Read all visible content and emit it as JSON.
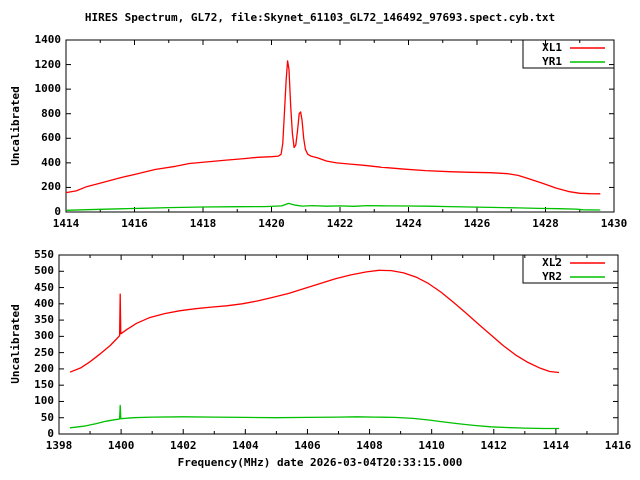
{
  "title": "HIRES Spectrum, GL72, file:Skynet_61103_GL72_146492_97693.spect.cyb.txt",
  "xlabel": "Frequency(MHz) date 2026-03-04T20:33:15.000",
  "colors": {
    "series_red": "#ff0000",
    "series_green": "#00c000",
    "frame": "#000000",
    "background": "#ffffff",
    "text": "#000000"
  },
  "chart_data": [
    {
      "type": "line",
      "panel": "top",
      "ylabel": "Uncalibrated",
      "xlim": [
        1414,
        1430
      ],
      "ylim": [
        0,
        1400
      ],
      "grid": false,
      "legend_position": "top-right",
      "xticks_major": [
        1414,
        1416,
        1418,
        1420,
        1422,
        1424,
        1426,
        1428,
        1430
      ],
      "xtick_labels": [
        "1414",
        "1416",
        "1418",
        "1420",
        "1422",
        "1424",
        "1426",
        "1428",
        "1430"
      ],
      "xticks_minor": [
        1415,
        1417,
        1419,
        1421,
        1423,
        1425,
        1427,
        1429
      ],
      "yticks_major": [
        0,
        200,
        400,
        600,
        800,
        1000,
        1200,
        1400
      ],
      "ytick_labels": [
        "0",
        "200",
        "400",
        "600",
        "800",
        "1000",
        "1200",
        "1400"
      ],
      "legend": [
        {
          "name": "XL1",
          "color": "#ff0000"
        },
        {
          "name": "YR1",
          "color": "#00c000"
        }
      ],
      "series": [
        {
          "name": "XL1",
          "color": "#ff0000",
          "points": [
            [
              1414.0,
              158
            ],
            [
              1414.3,
              172
            ],
            [
              1414.6,
              206
            ],
            [
              1415.0,
              235
            ],
            [
              1415.6,
              280
            ],
            [
              1416.0,
              305
            ],
            [
              1416.6,
              346
            ],
            [
              1417.2,
              372
            ],
            [
              1417.6,
              395
            ],
            [
              1418.2,
              410
            ],
            [
              1418.6,
              420
            ],
            [
              1419.2,
              435
            ],
            [
              1419.6,
              445
            ],
            [
              1420.0,
              450
            ],
            [
              1420.2,
              455
            ],
            [
              1420.28,
              470
            ],
            [
              1420.33,
              560
            ],
            [
              1420.38,
              820
            ],
            [
              1420.43,
              1080
            ],
            [
              1420.47,
              1230
            ],
            [
              1420.51,
              1160
            ],
            [
              1420.56,
              860
            ],
            [
              1420.61,
              640
            ],
            [
              1420.66,
              525
            ],
            [
              1420.71,
              545
            ],
            [
              1420.76,
              660
            ],
            [
              1420.81,
              800
            ],
            [
              1420.85,
              815
            ],
            [
              1420.89,
              750
            ],
            [
              1420.94,
              600
            ],
            [
              1420.99,
              510
            ],
            [
              1421.06,
              470
            ],
            [
              1421.15,
              455
            ],
            [
              1421.35,
              440
            ],
            [
              1421.6,
              415
            ],
            [
              1421.9,
              400
            ],
            [
              1422.3,
              390
            ],
            [
              1422.7,
              380
            ],
            [
              1423.2,
              365
            ],
            [
              1423.9,
              348
            ],
            [
              1424.5,
              337
            ],
            [
              1425.2,
              328
            ],
            [
              1425.8,
              323
            ],
            [
              1426.4,
              320
            ],
            [
              1426.9,
              312
            ],
            [
              1427.2,
              298
            ],
            [
              1427.5,
              272
            ],
            [
              1427.9,
              235
            ],
            [
              1428.3,
              195
            ],
            [
              1428.7,
              165
            ],
            [
              1429.0,
              152
            ],
            [
              1429.3,
              149
            ],
            [
              1429.6,
              148
            ]
          ]
        },
        {
          "name": "YR1",
          "color": "#00c000",
          "points": [
            [
              1414.0,
              14
            ],
            [
              1414.5,
              18
            ],
            [
              1415.0,
              22
            ],
            [
              1415.6,
              26
            ],
            [
              1416.2,
              30
            ],
            [
              1417.0,
              36
            ],
            [
              1418.0,
              41
            ],
            [
              1419.0,
              43
            ],
            [
              1419.8,
              44
            ],
            [
              1420.3,
              50
            ],
            [
              1420.5,
              70
            ],
            [
              1420.7,
              55
            ],
            [
              1420.9,
              48
            ],
            [
              1421.2,
              52
            ],
            [
              1421.6,
              47
            ],
            [
              1422.0,
              50
            ],
            [
              1422.4,
              46
            ],
            [
              1422.8,
              52
            ],
            [
              1423.4,
              50
            ],
            [
              1424.0,
              49
            ],
            [
              1424.6,
              47
            ],
            [
              1425.2,
              44
            ],
            [
              1426.0,
              40
            ],
            [
              1426.6,
              37
            ],
            [
              1427.2,
              33
            ],
            [
              1427.8,
              29
            ],
            [
              1428.4,
              27
            ],
            [
              1428.9,
              24
            ],
            [
              1429.1,
              18
            ],
            [
              1429.6,
              16
            ]
          ]
        }
      ]
    },
    {
      "type": "line",
      "panel": "bottom",
      "ylabel": "Uncalibrated",
      "xlim": [
        1398,
        1416
      ],
      "ylim": [
        0,
        550
      ],
      "grid": false,
      "legend_position": "top-right",
      "xticks_major": [
        1398,
        1400,
        1402,
        1404,
        1406,
        1408,
        1410,
        1412,
        1414,
        1416
      ],
      "xtick_labels": [
        "1398",
        "1400",
        "1402",
        "1404",
        "1406",
        "1408",
        "1410",
        "1412",
        "1414",
        "1416"
      ],
      "xticks_minor": [
        1399,
        1401,
        1403,
        1405,
        1407,
        1409,
        1411,
        1413,
        1415
      ],
      "yticks_major": [
        0,
        50,
        100,
        150,
        200,
        250,
        300,
        350,
        400,
        450,
        500,
        550
      ],
      "ytick_labels": [
        "0",
        "50",
        "100",
        "150",
        "200",
        "250",
        "300",
        "350",
        "400",
        "450",
        "500",
        "550"
      ],
      "legend": [
        {
          "name": "XL2",
          "color": "#ff0000"
        },
        {
          "name": "YR2",
          "color": "#00c000"
        }
      ],
      "series": [
        {
          "name": "XL2",
          "color": "#ff0000",
          "points": [
            [
              1398.35,
              190
            ],
            [
              1398.7,
              203
            ],
            [
              1399.0,
              222
            ],
            [
              1399.35,
              248
            ],
            [
              1399.65,
              272
            ],
            [
              1399.85,
              292
            ],
            [
              1399.95,
              302
            ],
            [
              1399.97,
              430
            ],
            [
              1399.99,
              308
            ],
            [
              1400.2,
              322
            ],
            [
              1400.5,
              340
            ],
            [
              1400.9,
              357
            ],
            [
              1401.4,
              370
            ],
            [
              1401.9,
              379
            ],
            [
              1402.4,
              385
            ],
            [
              1402.9,
              390
            ],
            [
              1403.4,
              394
            ],
            [
              1403.9,
              400
            ],
            [
              1404.4,
              409
            ],
            [
              1404.9,
              420
            ],
            [
              1405.4,
              432
            ],
            [
              1405.9,
              447
            ],
            [
              1406.4,
              462
            ],
            [
              1406.9,
              477
            ],
            [
              1407.4,
              489
            ],
            [
              1407.9,
              498
            ],
            [
              1408.3,
              503
            ],
            [
              1408.7,
              502
            ],
            [
              1409.1,
              495
            ],
            [
              1409.5,
              482
            ],
            [
              1409.9,
              462
            ],
            [
              1410.3,
              436
            ],
            [
              1410.7,
              405
            ],
            [
              1411.1,
              372
            ],
            [
              1411.5,
              338
            ],
            [
              1411.9,
              305
            ],
            [
              1412.3,
              272
            ],
            [
              1412.7,
              243
            ],
            [
              1413.1,
              220
            ],
            [
              1413.5,
              202
            ],
            [
              1413.8,
              192
            ],
            [
              1414.1,
              189
            ]
          ]
        },
        {
          "name": "YR2",
          "color": "#00c000",
          "points": [
            [
              1398.35,
              19
            ],
            [
              1398.8,
              24
            ],
            [
              1399.2,
              32
            ],
            [
              1399.5,
              39
            ],
            [
              1399.8,
              44
            ],
            [
              1399.95,
              46
            ],
            [
              1399.97,
              88
            ],
            [
              1399.99,
              47
            ],
            [
              1400.4,
              50
            ],
            [
              1401.0,
              52
            ],
            [
              1402.0,
              53
            ],
            [
              1403.0,
              52
            ],
            [
              1404.0,
              51
            ],
            [
              1405.0,
              50
            ],
            [
              1406.0,
              51
            ],
            [
              1407.0,
              52
            ],
            [
              1407.6,
              53
            ],
            [
              1408.2,
              52
            ],
            [
              1408.8,
              51
            ],
            [
              1409.4,
              48
            ],
            [
              1409.9,
              43
            ],
            [
              1410.4,
              37
            ],
            [
              1410.9,
              31
            ],
            [
              1411.4,
              26
            ],
            [
              1411.9,
              22
            ],
            [
              1412.4,
              20
            ],
            [
              1413.0,
              18
            ],
            [
              1413.6,
              17
            ],
            [
              1414.1,
              17
            ]
          ]
        }
      ]
    }
  ]
}
